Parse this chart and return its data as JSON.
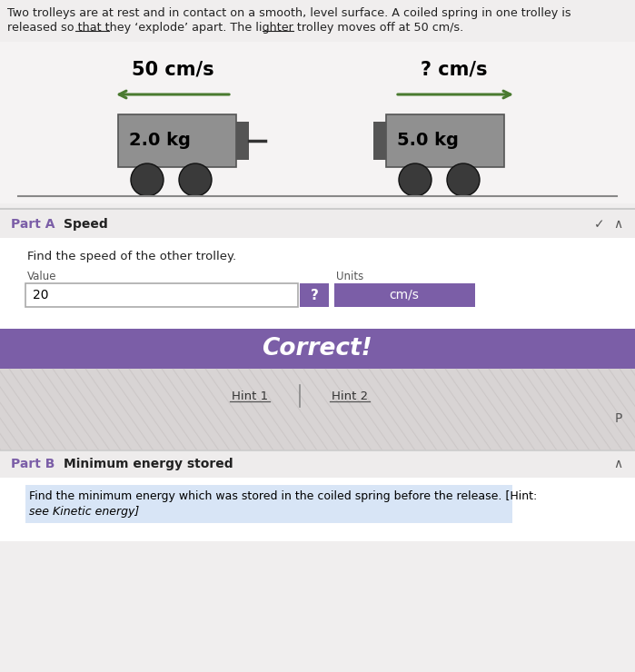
{
  "bg_color": "#f0eeee",
  "intro_text_line1": "Two trolleys are at rest and in contact on a smooth, level surface. A coiled spring in one trolley is",
  "intro_text_line2": "released so that they ‘explode’ apart. The lighter trolley moves off at 50 cm/s.",
  "left_speed_label": "50 cm/s",
  "right_speed_label": "? cm/s",
  "left_mass_label": "2.0 kg",
  "right_mass_label": "5.0 kg",
  "trolley_body_color": "#909090",
  "trolley_dark_color": "#555555",
  "wheel_color": "#3a3a3a",
  "arrow_color": "#4a7a30",
  "ground_color": "#888888",
  "partA_label": "Part A",
  "partA_title": "Speed",
  "partA_desc": "Find the speed of the other trolley.",
  "value_label": "Value",
  "units_label": "Units",
  "value_box_text": "20",
  "question_mark_text": "?",
  "units_box_text": "cm/s",
  "units_box_color": "#7b5ea7",
  "correct_bg_color": "#7b5ea7",
  "correct_text": "Correct!",
  "hint1_text": "Hint 1",
  "hint2_text": "Hint 2",
  "partB_label": "Part B",
  "partB_title": "Minimum energy stored",
  "partB_desc1": "Find the minimum energy which was stored in the coiled spring before the release. [Hint:",
  "partB_desc2": "see Kinetic energy]",
  "text_color_dark": "#222222",
  "text_color_purple": "#7b5ea7"
}
